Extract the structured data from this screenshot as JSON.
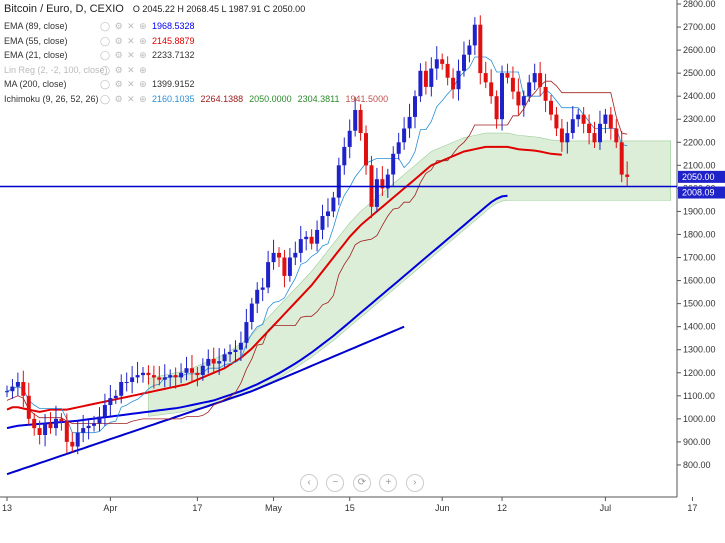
{
  "header": {
    "title": "Bitcoin / Euro, D, CEXIO",
    "ohlc": "O 2045.22 H 2068.45 L 1987.91 C 2050.00"
  },
  "legend": [
    {
      "name": "EMA (89, close)",
      "values": [
        "1968.5328"
      ],
      "color": "#0000ff"
    },
    {
      "name": "EMA (55, close)",
      "values": [
        "2145.8879"
      ],
      "color": "#e00000"
    },
    {
      "name": "EMA (21, close)",
      "values": [
        "2233.7132"
      ],
      "color": "#333333"
    },
    {
      "name": "Lin Reg (2, -2, 100, close)",
      "values": [],
      "color": "#bbbbbb"
    },
    {
      "name": "MA (200, close)",
      "values": [
        "1399.9152"
      ],
      "color": "#333333"
    },
    {
      "name": "Ichimoku (9, 26, 52, 26)",
      "values": [
        "2160.1035",
        "2264.1388",
        "2050.0000",
        "2304.3811",
        "1941.5000"
      ],
      "colors": [
        "#2a8fd6",
        "#a02020",
        "#2b8a2b",
        "#2b8a2b",
        "#c05050"
      ]
    }
  ],
  "nav_buttons": [
    "‹",
    "−",
    "⟳",
    "+",
    "›"
  ],
  "price_tags": {
    "last": "2050.00",
    "line": "2008.09"
  },
  "colors": {
    "up": "#1e22c8",
    "down": "#e01010",
    "ema55": "#e00000",
    "ema89": "#0000dd",
    "ma200": "#0000cc",
    "cloud_fill": "#d8ecd2",
    "hline": "#0000cc"
  },
  "chart_data": {
    "type": "candlestick",
    "title": "Bitcoin / Euro, D, CEXIO",
    "ylim": [
      700,
      2800
    ],
    "y_ticks": [
      "800.00",
      "900.00",
      "1000.00",
      "1100.00",
      "1200.00",
      "1300.00",
      "1400.00",
      "1500.00",
      "1600.00",
      "1700.00",
      "1800.00",
      "1900.00",
      "2000.00",
      "2100.00",
      "2200.00",
      "2300.00",
      "2400.00",
      "2500.00",
      "2600.00",
      "2700.00",
      "2800.00"
    ],
    "x_ticks": [
      {
        "label": "13",
        "day": 0
      },
      {
        "label": "Apr",
        "day": 19
      },
      {
        "label": "17",
        "day": 35
      },
      {
        "label": "May",
        "day": 49
      },
      {
        "label": "15",
        "day": 63
      },
      {
        "label": "Jun",
        "day": 80
      },
      {
        "label": "12",
        "day": 91
      },
      {
        "label": "Jul",
        "day": 110
      },
      {
        "label": "17",
        "day": 126
      }
    ],
    "horizontal_line": 2008.09,
    "closes": [
      1120,
      1140,
      1160,
      1100,
      1000,
      960,
      930,
      980,
      960,
      1000,
      990,
      900,
      880,
      940,
      960,
      970,
      980,
      1010,
      1060,
      1090,
      1100,
      1160,
      1160,
      1180,
      1190,
      1200,
      1190,
      1180,
      1170,
      1180,
      1190,
      1180,
      1200,
      1220,
      1200,
      1190,
      1230,
      1260,
      1240,
      1250,
      1280,
      1290,
      1300,
      1330,
      1420,
      1500,
      1560,
      1570,
      1680,
      1720,
      1700,
      1620,
      1700,
      1720,
      1780,
      1790,
      1760,
      1820,
      1880,
      1900,
      1960,
      2100,
      2180,
      2250,
      2340,
      2240,
      2100,
      1920,
      2040,
      2000,
      2060,
      2150,
      2200,
      2260,
      2310,
      2400,
      2510,
      2440,
      2520,
      2560,
      2540,
      2480,
      2430,
      2510,
      2580,
      2620,
      2710,
      2500,
      2460,
      2400,
      2300,
      2500,
      2480,
      2420,
      2360,
      2400,
      2460,
      2500,
      2440,
      2380,
      2320,
      2260,
      2200,
      2240,
      2300,
      2320,
      2280,
      2240,
      2200,
      2280,
      2320,
      2260,
      2200,
      2060,
      2050
    ],
    "ema55": [
      1040,
      1050,
      1050,
      1045,
      1040,
      1035,
      1030,
      1035,
      1040,
      1040,
      1040,
      1040,
      1045,
      1050,
      1055,
      1060,
      1065,
      1070,
      1075,
      1080,
      1085,
      1090,
      1095,
      1100,
      1105,
      1110,
      1115,
      1120,
      1125,
      1130,
      1135,
      1140,
      1145,
      1150,
      1160,
      1170,
      1180,
      1190,
      1200,
      1210,
      1220,
      1235,
      1250,
      1265,
      1285,
      1305,
      1330,
      1355,
      1380,
      1405,
      1430,
      1455,
      1480,
      1505,
      1530,
      1555,
      1580,
      1610,
      1640,
      1670,
      1700,
      1730,
      1760,
      1790,
      1815,
      1840,
      1860,
      1880,
      1900,
      1920,
      1940,
      1960,
      1980,
      2000,
      2020,
      2040,
      2060,
      2080,
      2100,
      2110,
      2120,
      2130,
      2140,
      2150,
      2160,
      2165,
      2170,
      2175,
      2180,
      2180,
      2180,
      2180,
      2180,
      2175,
      2170,
      2168,
      2166,
      2164,
      2160,
      2155,
      2150,
      2148,
      2146
    ],
    "ema89": [
      960,
      965,
      970,
      972,
      974,
      976,
      978,
      980,
      982,
      984,
      986,
      988,
      990,
      992,
      995,
      998,
      1001,
      1004,
      1007,
      1010,
      1013,
      1016,
      1019,
      1022,
      1025,
      1028,
      1031,
      1034,
      1037,
      1040,
      1043,
      1046,
      1050,
      1055,
      1060,
      1065,
      1070,
      1075,
      1080,
      1088,
      1096,
      1104,
      1112,
      1120,
      1130,
      1140,
      1150,
      1162,
      1174,
      1186,
      1198,
      1212,
      1226,
      1240,
      1256,
      1272,
      1288,
      1306,
      1324,
      1342,
      1360,
      1380,
      1400,
      1420,
      1440,
      1460,
      1480,
      1500,
      1520,
      1540,
      1560,
      1580,
      1600,
      1620,
      1640,
      1660,
      1680,
      1700,
      1720,
      1740,
      1760,
      1780,
      1800,
      1820,
      1840,
      1860,
      1880,
      1900,
      1920,
      1940,
      1955,
      1965,
      1968
    ],
    "ma200": [
      760,
      768,
      776,
      784,
      792,
      800,
      808,
      816,
      824,
      832,
      840,
      848,
      856,
      864,
      872,
      880,
      888,
      896,
      904,
      912,
      920,
      928,
      936,
      944,
      952,
      960,
      968,
      976,
      984,
      992,
      1000,
      1008,
      1016,
      1024,
      1032,
      1040,
      1048,
      1056,
      1064,
      1072,
      1080,
      1088,
      1096,
      1104,
      1112,
      1120,
      1130,
      1140,
      1150,
      1160,
      1170,
      1180,
      1190,
      1200,
      1210,
      1220,
      1230,
      1240,
      1250,
      1260,
      1270,
      1280,
      1290,
      1300,
      1310,
      1320,
      1330,
      1340,
      1350,
      1360,
      1370,
      1380,
      1390,
      1400
    ]
  }
}
